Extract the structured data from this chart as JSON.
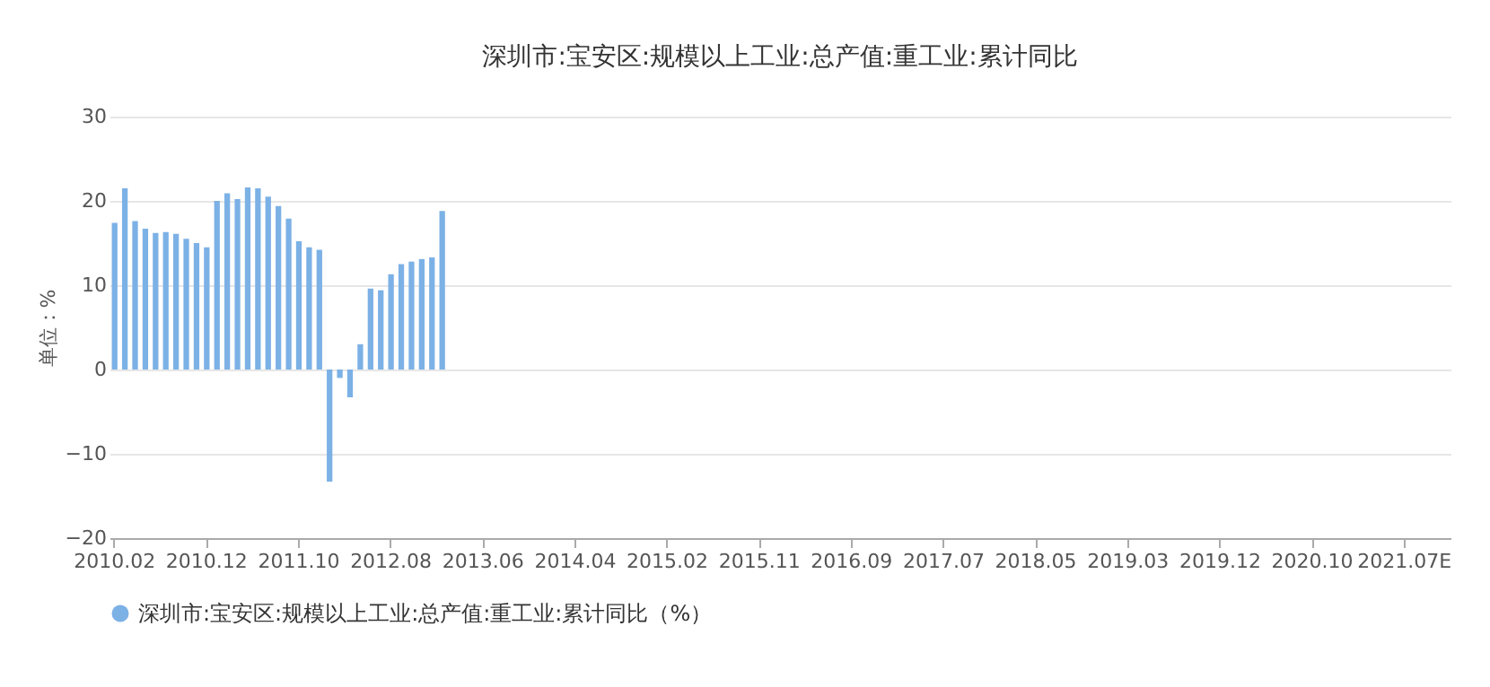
{
  "chart_data": {
    "type": "bar",
    "title": "深圳市:宝安区:规模以上工业:总产值:重工业:累计同比",
    "ylabel": "单位：%",
    "categories": [
      "2010.02",
      null,
      null,
      null,
      null,
      null,
      null,
      null,
      null,
      "2010.12",
      null,
      null,
      null,
      null,
      null,
      null,
      null,
      null,
      "2011.10",
      null,
      null,
      null,
      null,
      null,
      null,
      null,
      null,
      "2012.08",
      null,
      null,
      null,
      null,
      null,
      null,
      null,
      null,
      "2013.06",
      null,
      null,
      null,
      null,
      null,
      null,
      null,
      null,
      "2014.04",
      null,
      null,
      null,
      null,
      null,
      null,
      null,
      null,
      "2015.02",
      null,
      null,
      null,
      null,
      null,
      null,
      null,
      null,
      "2015.11",
      null,
      null,
      null,
      null,
      null,
      null,
      null,
      null,
      "2016.09",
      null,
      null,
      null,
      null,
      null,
      null,
      null,
      null,
      "2017.07",
      null,
      null,
      null,
      null,
      null,
      null,
      null,
      null,
      "2018.05",
      null,
      null,
      null,
      null,
      null,
      null,
      null,
      null,
      "2019.03",
      null,
      null,
      null,
      null,
      null,
      null,
      null,
      null,
      "2019.12",
      null,
      null,
      null,
      null,
      null,
      null,
      null,
      null,
      "2020.10",
      null,
      null,
      null,
      null,
      null,
      null,
      null,
      null,
      "2021.07E",
      null,
      null,
      null,
      null
    ],
    "series": [
      {
        "name": "深圳市:宝安区:规模以上工业:总产值:重工业:累计同比（%）",
        "color": "#7cb1e6",
        "values": [
          17.4,
          21.5,
          17.6,
          16.7,
          16.2,
          16.3,
          16.1,
          15.5,
          15.0,
          14.5,
          20.0,
          20.9,
          20.2,
          21.6,
          21.5,
          20.5,
          19.4,
          17.9,
          15.2,
          14.5,
          14.2,
          -13.3,
          -1.0,
          -3.3,
          3.0,
          9.6,
          9.4,
          11.3,
          12.5,
          12.8,
          13.1,
          13.3,
          18.8,
          null,
          null,
          null,
          null,
          null,
          null,
          null,
          null,
          null,
          null,
          null,
          null,
          null,
          null,
          null,
          null,
          null,
          null,
          null,
          null,
          null,
          null,
          null,
          null,
          null,
          null,
          null,
          null,
          null,
          null,
          null,
          null,
          null,
          null,
          null,
          null,
          null,
          null,
          null,
          null,
          null,
          null,
          null,
          null,
          null,
          null,
          null,
          null,
          null,
          null,
          null,
          null,
          null,
          null,
          null,
          null,
          null,
          null,
          null,
          null,
          null,
          null,
          null,
          null,
          null,
          null,
          null,
          null,
          null,
          null,
          null,
          null,
          null,
          null,
          null,
          null,
          null,
          null,
          null,
          null,
          null,
          null,
          null,
          null,
          null,
          null,
          null,
          null,
          null,
          null,
          null,
          null,
          null,
          null,
          null,
          null,
          null,
          null
        ]
      }
    ],
    "ylim": [
      -20,
      30
    ],
    "yticks": [
      -20,
      -10,
      0,
      10,
      20,
      30
    ],
    "grid": "y",
    "legend": "bottom"
  }
}
